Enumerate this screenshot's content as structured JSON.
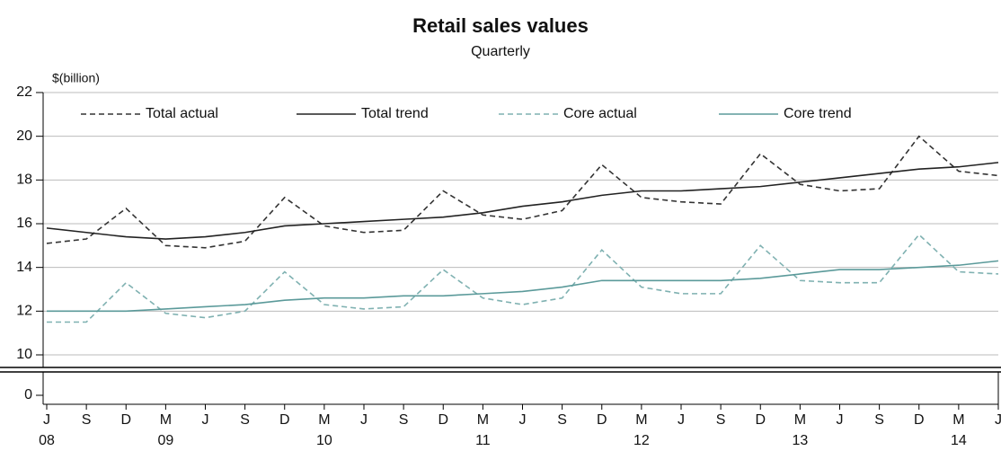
{
  "chart_data": {
    "type": "line",
    "title": "Retail sales values",
    "subtitle": "Quarterly",
    "y_label": "$(billion)",
    "categories": [
      "J",
      "S",
      "D",
      "M",
      "J",
      "S",
      "D",
      "M",
      "J",
      "S",
      "D",
      "M",
      "J",
      "S",
      "D",
      "M",
      "J",
      "S",
      "D",
      "M",
      "J",
      "S",
      "D",
      "M",
      "J"
    ],
    "year_labels": [
      "08",
      null,
      null,
      "09",
      null,
      null,
      null,
      "10",
      null,
      null,
      null,
      "11",
      null,
      null,
      null,
      "12",
      null,
      null,
      null,
      "13",
      null,
      null,
      null,
      "14",
      null
    ],
    "ylim": [
      10,
      22
    ],
    "yticks": [
      10,
      12,
      14,
      16,
      18,
      20,
      22
    ],
    "ybreak_tick": 0,
    "grid": true,
    "series": [
      {
        "name": "Total actual",
        "color": "#333333",
        "dashed": true,
        "values": [
          15.1,
          15.3,
          16.7,
          15.0,
          14.9,
          15.2,
          17.2,
          15.9,
          15.6,
          15.7,
          17.5,
          16.4,
          16.2,
          16.6,
          18.7,
          17.2,
          17.0,
          16.9,
          19.2,
          17.8,
          17.5,
          17.6,
          20.0,
          18.4,
          18.2
        ]
      },
      {
        "name": "Total trend",
        "color": "#222222",
        "dashed": false,
        "values": [
          15.8,
          15.6,
          15.4,
          15.3,
          15.4,
          15.6,
          15.9,
          16.0,
          16.1,
          16.2,
          16.3,
          16.5,
          16.8,
          17.0,
          17.3,
          17.5,
          17.5,
          17.6,
          17.7,
          17.9,
          18.1,
          18.3,
          18.5,
          18.6,
          18.8
        ]
      },
      {
        "name": "Core actual",
        "color": "#7fb1b1",
        "dashed": true,
        "values": [
          11.5,
          11.5,
          13.3,
          11.9,
          11.7,
          12.0,
          13.8,
          12.3,
          12.1,
          12.2,
          13.9,
          12.6,
          12.3,
          12.6,
          14.8,
          13.1,
          12.8,
          12.8,
          15.0,
          13.4,
          13.3,
          13.3,
          15.5,
          13.8,
          13.7
        ]
      },
      {
        "name": "Core trend",
        "color": "#5b9a9a",
        "dashed": false,
        "values": [
          12.0,
          12.0,
          12.0,
          12.1,
          12.2,
          12.3,
          12.5,
          12.6,
          12.6,
          12.7,
          12.7,
          12.8,
          12.9,
          13.1,
          13.4,
          13.4,
          13.4,
          13.4,
          13.5,
          13.7,
          13.9,
          13.9,
          14.0,
          14.1,
          14.3
        ]
      }
    ]
  }
}
